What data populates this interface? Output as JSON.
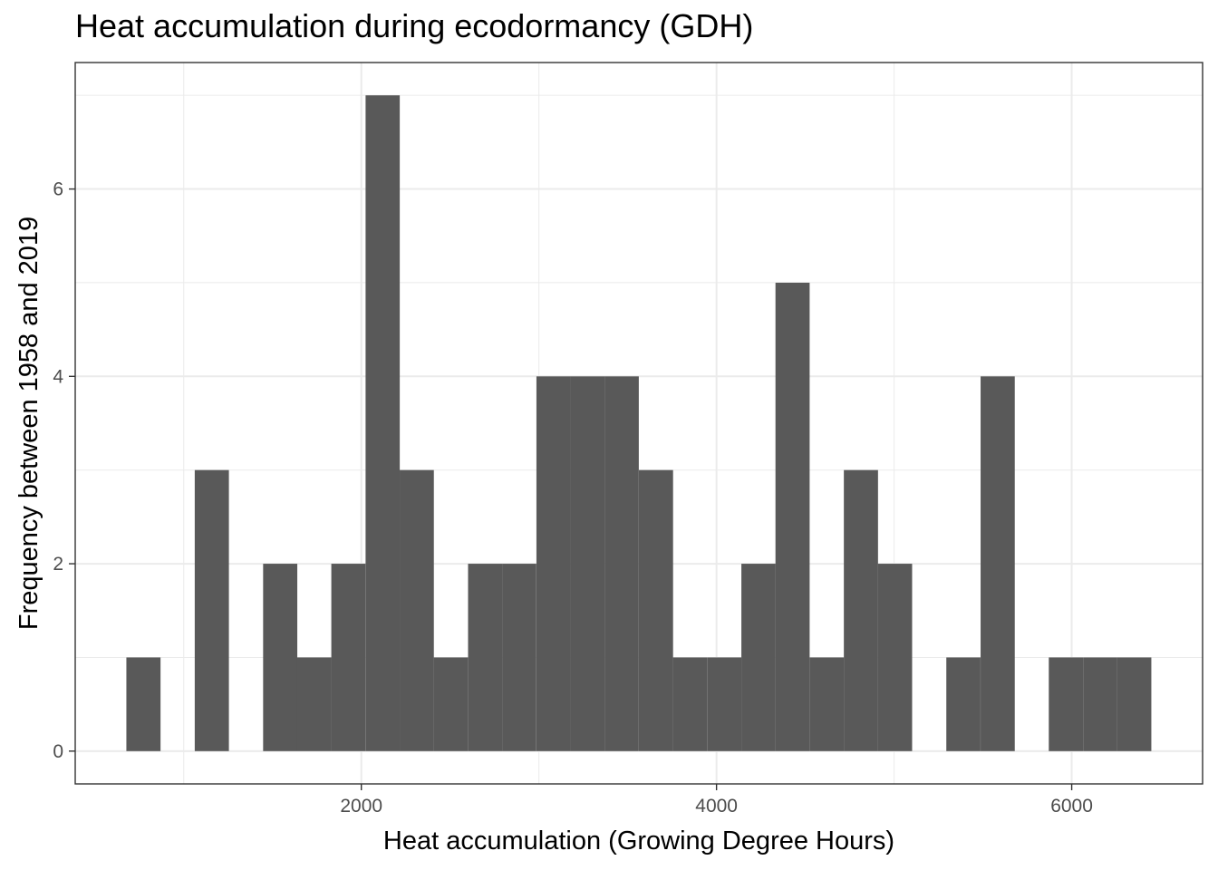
{
  "chart_data": {
    "type": "bar",
    "title": "Heat accumulation during ecodormancy (GDH)",
    "xlabel": "Heat accumulation (Growing Degree Hours)",
    "ylabel": "Frequency between 1958 and 2019",
    "xlim": [
      389,
      6737
    ],
    "ylim": [
      -0.35,
      7.35
    ],
    "x_ticks": [
      2000,
      4000,
      6000
    ],
    "x_tick_labels": [
      "2000",
      "4000",
      "6000"
    ],
    "y_ticks": [
      0,
      2,
      4,
      6
    ],
    "y_tick_labels": [
      "0",
      "2",
      "4",
      "6"
    ],
    "bin_width": 192.4,
    "bin_starts": [
      677,
      869,
      1062,
      1254,
      1447,
      1639,
      1831,
      2024,
      2216,
      2408,
      2601,
      2793,
      2986,
      3178,
      3370,
      3563,
      3755,
      3948,
      4140,
      4332,
      4525,
      4717,
      4909,
      5102,
      5294,
      5487,
      5679,
      5871,
      6064,
      6256
    ],
    "values": [
      1,
      0,
      3,
      0,
      2,
      1,
      2,
      7,
      3,
      1,
      2,
      2,
      4,
      4,
      4,
      3,
      1,
      1,
      2,
      5,
      1,
      3,
      2,
      0,
      1,
      4,
      0,
      1,
      1,
      1
    ],
    "bar_color": "#595959",
    "grid": true,
    "legend": "none"
  }
}
